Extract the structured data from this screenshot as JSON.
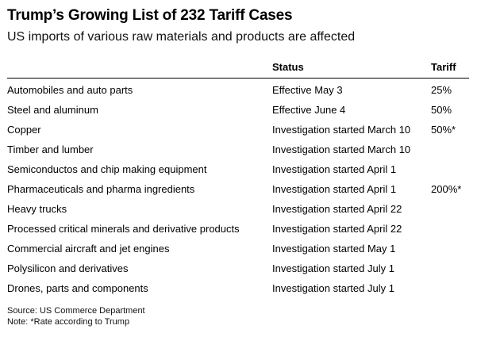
{
  "header": {
    "title": "Trump’s Growing List of 232 Tariff Cases",
    "subtitle": "US imports of various raw materials and products are affected"
  },
  "chart_data": {
    "type": "table",
    "title": "Trump’s Growing List of 232 Tariff Cases",
    "subtitle": "US imports of various raw materials and products are affected",
    "columns": [
      "",
      "Status",
      "Tariff"
    ],
    "rows": [
      {
        "item": "Automobiles and auto parts",
        "status": "Effective May 3",
        "tariff": "25%"
      },
      {
        "item": "Steel and aluminum",
        "status": "Effective June 4",
        "tariff": "50%"
      },
      {
        "item": "Copper",
        "status": "Investigation started March 10",
        "tariff": "50%*"
      },
      {
        "item": "Timber and lumber",
        "status": "Investigation started March 10",
        "tariff": ""
      },
      {
        "item": "Semiconductos and chip making equipment",
        "status": "Investigation started April 1",
        "tariff": ""
      },
      {
        "item": "Pharmaceuticals and pharma ingredients",
        "status": "Investigation started April 1",
        "tariff": "200%*"
      },
      {
        "item": "Heavy trucks",
        "status": "Investigation started April 22",
        "tariff": ""
      },
      {
        "item": "Processed critical minerals and derivative products",
        "status": "Investigation started April 22",
        "tariff": ""
      },
      {
        "item": "Commercial aircraft and jet engines",
        "status": "Investigation started May 1",
        "tariff": ""
      },
      {
        "item": "Polysilicon and derivatives",
        "status": "Investigation started July 1",
        "tariff": ""
      },
      {
        "item": "Drones, parts and components",
        "status": "Investigation started July 1",
        "tariff": ""
      }
    ]
  },
  "footer": {
    "source": "Source: US Commerce Department",
    "note": "Note: *Rate according to Trump"
  }
}
